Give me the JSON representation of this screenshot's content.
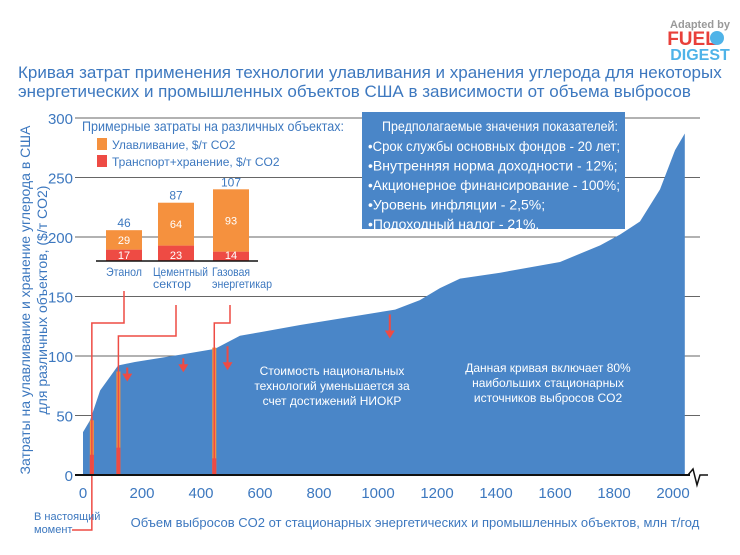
{
  "logo": {
    "line1": "Adapted by",
    "line2": "FUEL",
    "line3": "DIGEST"
  },
  "chart_data": {
    "type": "area",
    "title": "Кривая затрат применения технологии улавливания и хранения углерода для некоторых энергетических и промышленных объектов США в зависимости от объема выбросов",
    "xlabel": "Объем выбросов CO2 от стационарных энергетических и промышленных объектов, млн т/год",
    "ylabel_line1": "Затраты на улавливание и хранение углерода в США",
    "ylabel_line2": "для различных объектов, ($/т CO2)",
    "xlim": [
      0,
      2060
    ],
    "ylim": [
      0,
      300
    ],
    "xticks": [
      "0",
      "200",
      "400",
      "600",
      "800",
      "1000",
      "1200",
      "1400",
      "1600",
      "1800",
      "2000"
    ],
    "yticks": [
      "0",
      "50",
      "100",
      "150",
      "200",
      "250",
      "300"
    ],
    "grid": "horizontal",
    "color": "#4a86c8",
    "series": {
      "x": [
        0,
        24,
        58,
        119,
        176,
        329,
        447,
        532,
        600,
        736,
        1058,
        1142,
        1210,
        1278,
        1414,
        1617,
        1753,
        1820,
        1888,
        1956,
        2007,
        2040
      ],
      "y": [
        36,
        46,
        71,
        92,
        95,
        101,
        106,
        117,
        120,
        126,
        139,
        147,
        157,
        165,
        170,
        179,
        193,
        202,
        213,
        240,
        273,
        287
      ]
    },
    "current_markers": [
      {
        "x": 30,
        "capture": 46,
        "transport": 17
      },
      {
        "x": 120,
        "capture": 87,
        "transport": 23
      },
      {
        "x": 445,
        "capture": 107,
        "transport": 14
      }
    ],
    "reduction_arrows_x": [
      150,
      340,
      490,
      1040
    ],
    "annotation_now": "В настоящий момент",
    "annotation_rnd": [
      "Стоимость национальных",
      "технологий уменьшается за",
      "счет достижений  НИОКР"
    ],
    "annotation_coverage": [
      "Данная кривая включает 80%",
      "наибольших стационарных",
      "источников выбросов CO2"
    ],
    "inset": {
      "title": "Примерные затраты на различных объектах:",
      "legend": [
        {
          "name": "Улавливание, $/т CO2",
          "color": "#f5913e"
        },
        {
          "name": "Транспорт+хранение, $/т CO2",
          "color": "#ee4b44"
        }
      ],
      "categories": [
        "Этанол",
        "Цементный сектор",
        "Газовая энергетикар"
      ],
      "category_lines": [
        [
          "Этанол"
        ],
        [
          "Цементный",
          "сектор"
        ],
        [
          "Газовая",
          "энергетикар"
        ]
      ],
      "capture": [
        29,
        64,
        93
      ],
      "transport": [
        17,
        23,
        14
      ],
      "totals": [
        46,
        87,
        107
      ]
    },
    "assumptions": {
      "title": "Предполагаемые значения показателей:",
      "items": [
        "Срок службы основных фондов - 20 лет;",
        "Внутренняя норма доходности - 12%;",
        "Акционерное финансирование - 100%;",
        "Уровень инфляции - 2,5%;",
        "Подоходный налог - 21%."
      ]
    }
  }
}
